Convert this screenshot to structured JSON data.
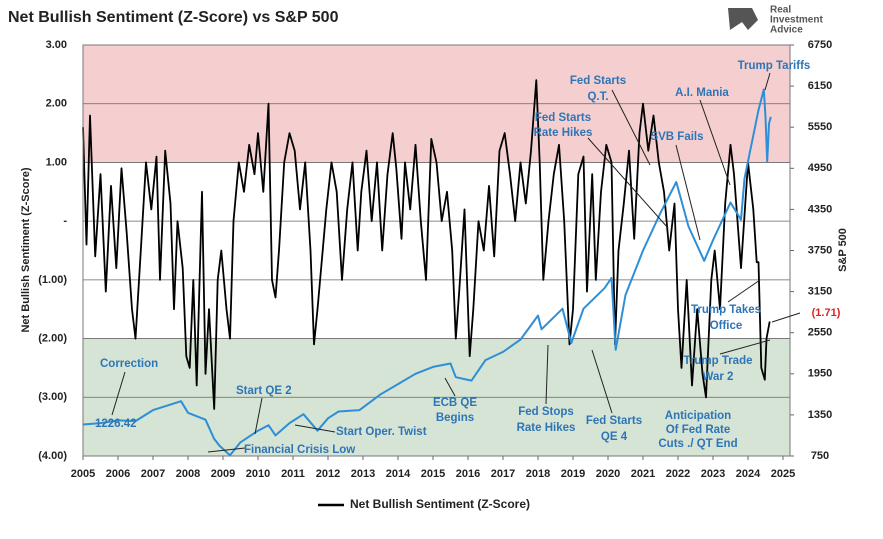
{
  "chart_data": {
    "type": "line",
    "title": "Net Bullish Sentiment (Z-Score) vs S&P 500",
    "ylabel": "Net Bullish Sentiment (Z-Score)",
    "y2label": "S&P 500",
    "logo": [
      "Real",
      "Investment",
      "Advice"
    ],
    "xlim": [
      2005,
      2025.2
    ],
    "xticks": [
      2005,
      2006,
      2007,
      2008,
      2009,
      2010,
      2011,
      2012,
      2013,
      2014,
      2015,
      2016,
      2017,
      2018,
      2019,
      2020,
      2021,
      2022,
      2023,
      2024,
      2025
    ],
    "ylim": [
      -4,
      3
    ],
    "yticks": [
      {
        "value": 3,
        "label": "3.00"
      },
      {
        "value": 2,
        "label": "2.00"
      },
      {
        "value": 1,
        "label": "1.00"
      },
      {
        "value": 0,
        "label": "-"
      },
      {
        "value": -1,
        "label": "(1.00)"
      },
      {
        "value": -2,
        "label": "(2.00)"
      },
      {
        "value": -3,
        "label": "(3.00)"
      },
      {
        "value": -4,
        "label": "(4.00)"
      }
    ],
    "y2lim": [
      750,
      6750
    ],
    "y2ticks": [
      750,
      1350,
      1950,
      2550,
      3150,
      3750,
      4350,
      4950,
      5550,
      6150,
      6750
    ],
    "grid": true,
    "bands": [
      {
        "from": 1,
        "to": 3,
        "color": "#f5cfcf"
      },
      {
        "from": -2,
        "to": -4,
        "color": "#d5e4d5"
      }
    ],
    "legend": "bottom",
    "series": [
      {
        "name": "Net Bullish Sentiment (Z-Score)",
        "color": "#000000",
        "x": [
          2005.0,
          2005.1,
          2005.2,
          2005.35,
          2005.5,
          2005.65,
          2005.8,
          2005.95,
          2006.1,
          2006.25,
          2006.4,
          2006.5,
          2006.65,
          2006.8,
          2006.95,
          2007.1,
          2007.2,
          2007.35,
          2007.5,
          2007.6,
          2007.7,
          2007.85,
          2007.95,
          2008.05,
          2008.15,
          2008.25,
          2008.4,
          2008.5,
          2008.6,
          2008.75,
          2008.85,
          2008.95,
          2009.1,
          2009.2,
          2009.3,
          2009.45,
          2009.6,
          2009.75,
          2009.9,
          2010.0,
          2010.15,
          2010.3,
          2010.4,
          2010.5,
          2010.6,
          2010.75,
          2010.9,
          2011.05,
          2011.2,
          2011.35,
          2011.5,
          2011.6,
          2011.7,
          2011.85,
          2011.95,
          2012.1,
          2012.25,
          2012.4,
          2012.55,
          2012.7,
          2012.85,
          2012.95,
          2013.1,
          2013.25,
          2013.4,
          2013.55,
          2013.7,
          2013.85,
          2013.95,
          2014.1,
          2014.2,
          2014.35,
          2014.5,
          2014.65,
          2014.8,
          2014.95,
          2015.1,
          2015.25,
          2015.4,
          2015.55,
          2015.65,
          2015.75,
          2015.9,
          2016.05,
          2016.15,
          2016.3,
          2016.45,
          2016.6,
          2016.75,
          2016.9,
          2017.05,
          2017.2,
          2017.35,
          2017.5,
          2017.65,
          2017.8,
          2017.95,
          2018.05,
          2018.15,
          2018.3,
          2018.45,
          2018.6,
          2018.75,
          2018.9,
          2019.0,
          2019.15,
          2019.3,
          2019.4,
          2019.55,
          2019.65,
          2019.8,
          2019.95,
          2020.1,
          2020.2,
          2020.3,
          2020.45,
          2020.6,
          2020.75,
          2020.9,
          2021.0,
          2021.15,
          2021.3,
          2021.45,
          2021.6,
          2021.75,
          2021.9,
          2022.0,
          2022.1,
          2022.25,
          2022.4,
          2022.55,
          2022.7,
          2022.8,
          2022.95,
          2023.05,
          2023.2,
          2023.35,
          2023.5,
          2023.6,
          2023.8,
          2024.0,
          2024.15,
          2024.25,
          2024.3,
          2024.38,
          2024.48,
          2024.53,
          2024.62
        ],
        "values": [
          1.6,
          -0.4,
          1.8,
          -0.6,
          0.8,
          -1.2,
          0.6,
          -0.8,
          0.9,
          -0.2,
          -1.5,
          -2.0,
          -0.5,
          1.0,
          0.2,
          1.1,
          -1.0,
          1.2,
          0.3,
          -1.5,
          0.0,
          -0.8,
          -2.3,
          -2.5,
          -1.0,
          -2.8,
          0.5,
          -2.6,
          -1.5,
          -3.2,
          -1.0,
          -0.5,
          -1.5,
          -2.0,
          0.0,
          1.0,
          0.5,
          1.3,
          0.8,
          1.5,
          0.5,
          2.0,
          -1.0,
          -1.3,
          -0.5,
          1.0,
          1.5,
          1.2,
          0.2,
          1.0,
          -0.5,
          -2.1,
          -1.5,
          -0.5,
          0.2,
          1.0,
          0.5,
          -1.0,
          0.2,
          1.0,
          -0.5,
          0.5,
          1.2,
          0.0,
          1.0,
          -0.5,
          0.8,
          1.5,
          0.9,
          -0.3,
          1.0,
          0.2,
          1.3,
          0.0,
          -1.0,
          1.4,
          1.0,
          0.0,
          0.5,
          -0.5,
          -2.0,
          -1.2,
          0.2,
          -2.3,
          -1.5,
          0.0,
          -0.5,
          0.6,
          -0.6,
          1.2,
          1.5,
          0.8,
          0.0,
          1.0,
          0.3,
          1.2,
          2.4,
          1.0,
          -1.0,
          0.0,
          0.8,
          1.3,
          0.0,
          -2.1,
          -1.5,
          0.8,
          1.1,
          -1.2,
          0.8,
          -1.0,
          0.5,
          1.3,
          1.0,
          -2.1,
          -0.5,
          0.3,
          1.2,
          -0.3,
          1.5,
          2.0,
          1.2,
          1.8,
          1.0,
          0.5,
          -0.5,
          0.3,
          -1.5,
          -2.5,
          -1.0,
          -2.8,
          -1.5,
          -2.6,
          -3.0,
          -1.0,
          -0.5,
          -1.5,
          0.3,
          1.3,
          0.8,
          -0.8,
          1.0,
          0.2,
          -0.7,
          -0.7,
          -2.5,
          -2.7,
          -2.0,
          -1.71
        ]
      },
      {
        "name": "S&P 500",
        "color": "#2e8fd6",
        "axis": "y2",
        "x": [
          2005.0,
          2005.5,
          2006.0,
          2006.5,
          2007.0,
          2007.5,
          2007.8,
          2008.0,
          2008.5,
          2008.75,
          2008.9,
          2009.2,
          2009.5,
          2010.0,
          2010.3,
          2010.5,
          2010.9,
          2011.3,
          2011.7,
          2012.0,
          2012.3,
          2012.9,
          2013.5,
          2014.0,
          2014.5,
          2015.0,
          2015.5,
          2015.65,
          2016.1,
          2016.5,
          2017.0,
          2017.5,
          2018.0,
          2018.1,
          2018.7,
          2018.95,
          2019.3,
          2019.9,
          2020.1,
          2020.22,
          2020.5,
          2021.0,
          2021.5,
          2021.95,
          2022.3,
          2022.75,
          2023.0,
          2023.5,
          2023.8,
          2023.9,
          2024.1,
          2024.3,
          2024.45,
          2024.5,
          2024.55,
          2024.6,
          2024.65
        ],
        "values": [
          1210,
          1230,
          1270,
          1260,
          1420,
          1500,
          1550,
          1380,
          1280,
          1000,
          900,
          760,
          950,
          1120,
          1200,
          1050,
          1230,
          1360,
          1120,
          1300,
          1400,
          1420,
          1650,
          1800,
          1950,
          2050,
          2100,
          1900,
          1850,
          2150,
          2270,
          2450,
          2800,
          2600,
          2900,
          2400,
          2900,
          3200,
          3350,
          2300,
          3100,
          3750,
          4300,
          4750,
          4100,
          3600,
          3900,
          4450,
          4200,
          4800,
          5300,
          5800,
          6100,
          5700,
          5050,
          5600,
          5700
        ]
      }
    ],
    "annotations": [
      [
        "Correction"
      ],
      [
        "1226.42"
      ],
      [
        "Start QE 2"
      ],
      [
        "Financial Crisis Low"
      ],
      [
        "Start Oper. Twist"
      ],
      [
        "ECB QE",
        "Begins"
      ],
      [
        "Fed Stops",
        "Rate Hikes"
      ],
      [
        "Fed Starts",
        "QE 4"
      ],
      [
        "Anticipation",
        "Of Fed Rate",
        "Cuts ./ QT End"
      ],
      [
        "Trump Trade",
        "War 2"
      ],
      [
        "Trump Takes",
        "Office"
      ],
      [
        "SVB Fails"
      ],
      [
        "Fed Starts",
        "Rate Hikes"
      ],
      [
        "Fed Starts",
        "Q.T."
      ],
      [
        "A.I. Mania"
      ],
      [
        "Trump Tariffs"
      ]
    ],
    "end_label": "(1.71)"
  }
}
